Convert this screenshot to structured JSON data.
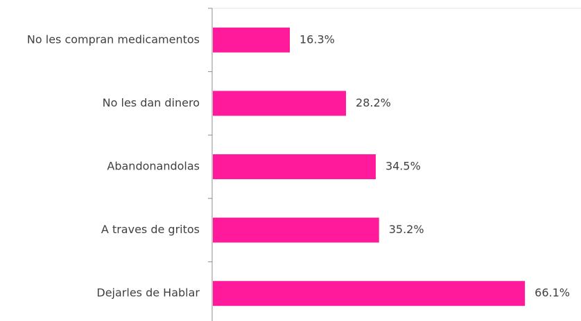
{
  "chart_data": {
    "type": "bar",
    "orientation": "horizontal",
    "categories": [
      "No les compran medicamentos",
      "No les dan dinero",
      "Abandonandolas",
      "A traves de gritos",
      "Dejarles de Hablar"
    ],
    "values": [
      16.3,
      28.2,
      34.5,
      35.2,
      66.1
    ],
    "value_labels": [
      "16.3%",
      "28.2%",
      "34.5%",
      "35.2%",
      "66.1%"
    ],
    "color": "#ff1a9c"
  }
}
